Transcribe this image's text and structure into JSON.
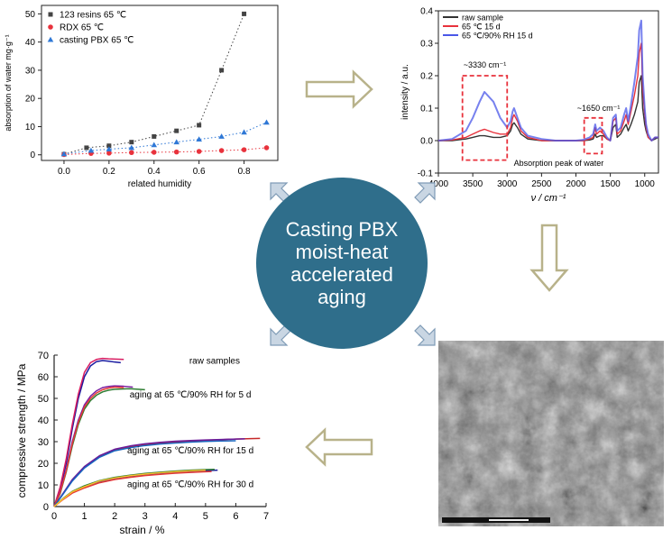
{
  "center": {
    "lines": [
      "Casting PBX",
      "moist-heat",
      "accelerated",
      "aging"
    ],
    "color": "#2f6e8b"
  },
  "sem_image": {
    "description": "",
    "scale_bar": ""
  },
  "chart_data": [
    {
      "type": "scatter",
      "xlabel": "related humidity",
      "ylabel": "absorption of water mg·g⁻¹",
      "xlim": [
        -0.1,
        0.95
      ],
      "ylim": [
        -2,
        53
      ],
      "xticks": [
        "0.0",
        "0.2",
        "0.4",
        "0.6",
        "0.8"
      ],
      "yticks": [
        "0",
        "10",
        "20",
        "30",
        "40",
        "50"
      ],
      "legend_position": "top-left",
      "series": [
        {
          "name": "123 resins 65 ℃",
          "marker": "square",
          "color": "#444444",
          "x": [
            0.0,
            0.1,
            0.2,
            0.3,
            0.4,
            0.5,
            0.6,
            0.7,
            0.8
          ],
          "y": [
            0.2,
            2.5,
            3.2,
            4.5,
            6.5,
            8.5,
            10.5,
            30.0,
            50.0
          ]
        },
        {
          "name": "RDX 65 ℃",
          "marker": "circle",
          "color": "#e8323c",
          "x": [
            0.0,
            0.12,
            0.2,
            0.3,
            0.4,
            0.5,
            0.6,
            0.7,
            0.8,
            0.9
          ],
          "y": [
            0.1,
            0.5,
            0.6,
            0.8,
            0.9,
            1.0,
            1.2,
            1.5,
            1.8,
            2.5
          ]
        },
        {
          "name": "casting PBX 65 ℃",
          "marker": "triangle",
          "color": "#2f78d6",
          "x": [
            0.0,
            0.12,
            0.2,
            0.3,
            0.4,
            0.5,
            0.6,
            0.7,
            0.8,
            0.9
          ],
          "y": [
            0.3,
            1.5,
            2.0,
            2.5,
            3.5,
            4.5,
            5.5,
            6.5,
            8.0,
            11.5
          ]
        }
      ]
    },
    {
      "type": "line",
      "xlabel": "ν / cm⁻¹",
      "ylabel": "intensity / a.u.",
      "xlim": [
        4000,
        800
      ],
      "ylim": [
        -0.1,
        0.4
      ],
      "xticks": [
        "4000",
        "3500",
        "3000",
        "2500",
        "2000",
        "1500",
        "1000"
      ],
      "yticks": [
        "-0.1",
        "0.0",
        "0.1",
        "0.2",
        "0.3",
        "0.4"
      ],
      "legend_position": "top-left",
      "annotations": [
        "~3330 cm⁻¹",
        "~1650 cm⁻¹",
        "Absorption peak of water"
      ],
      "series": [
        {
          "name": "raw sample",
          "color": "#333333",
          "x": [
            4000,
            3800,
            3600,
            3500,
            3400,
            3330,
            3200,
            3100,
            3000,
            2950,
            2920,
            2900,
            2850,
            2800,
            2700,
            2500,
            2300,
            2100,
            2000,
            1900,
            1800,
            1750,
            1720,
            1700,
            1650,
            1600,
            1550,
            1500,
            1460,
            1420,
            1400,
            1350,
            1300,
            1270,
            1240,
            1200,
            1150,
            1100,
            1080,
            1050,
            1030,
            1000,
            980,
            950,
            900,
            850,
            800
          ],
          "y": [
            0.0,
            0.0,
            0.005,
            0.01,
            0.015,
            0.015,
            0.01,
            0.01,
            0.015,
            0.03,
            0.05,
            0.055,
            0.04,
            0.02,
            0.005,
            0.0,
            0.0,
            0.0,
            0.0,
            0.0,
            0.002,
            0.005,
            0.02,
            0.01,
            0.015,
            0.015,
            0.005,
            0.0,
            0.04,
            0.05,
            0.01,
            0.02,
            0.04,
            0.05,
            0.03,
            0.05,
            0.08,
            0.12,
            0.18,
            0.2,
            0.1,
            0.05,
            0.03,
            0.01,
            0.0,
            0.005,
            0.01
          ]
        },
        {
          "name": "65 ℃ 15 d",
          "color": "#e8323c",
          "x": [
            4000,
            3800,
            3600,
            3500,
            3400,
            3330,
            3200,
            3100,
            3000,
            2950,
            2920,
            2900,
            2850,
            2800,
            2700,
            2500,
            2300,
            2100,
            2000,
            1900,
            1800,
            1750,
            1720,
            1700,
            1650,
            1600,
            1550,
            1500,
            1460,
            1420,
            1400,
            1350,
            1300,
            1270,
            1240,
            1200,
            1150,
            1100,
            1080,
            1050,
            1030,
            1000,
            980,
            950,
            900,
            850,
            800
          ],
          "y": [
            0.0,
            0.002,
            0.01,
            0.02,
            0.03,
            0.035,
            0.025,
            0.02,
            0.02,
            0.04,
            0.07,
            0.08,
            0.06,
            0.03,
            0.01,
            0.0,
            0.0,
            0.0,
            0.0,
            0.0,
            0.005,
            0.01,
            0.04,
            0.02,
            0.03,
            0.02,
            0.005,
            0.0,
            0.06,
            0.07,
            0.02,
            0.03,
            0.06,
            0.08,
            0.05,
            0.09,
            0.14,
            0.2,
            0.27,
            0.3,
            0.16,
            0.08,
            0.04,
            0.01,
            0.0,
            0.01,
            0.01
          ]
        },
        {
          "name": "65 ℃/90% RH 15 d",
          "color": "#4a57e8",
          "x": [
            4000,
            3800,
            3600,
            3500,
            3400,
            3330,
            3200,
            3100,
            3000,
            2950,
            2920,
            2900,
            2850,
            2800,
            2700,
            2500,
            2300,
            2100,
            2000,
            1900,
            1800,
            1750,
            1720,
            1700,
            1650,
            1600,
            1550,
            1500,
            1460,
            1420,
            1400,
            1350,
            1300,
            1270,
            1240,
            1200,
            1150,
            1100,
            1080,
            1050,
            1030,
            1000,
            980,
            950,
            900,
            850,
            800
          ],
          "y": [
            0.0,
            0.005,
            0.03,
            0.07,
            0.12,
            0.15,
            0.12,
            0.07,
            0.04,
            0.06,
            0.09,
            0.1,
            0.07,
            0.04,
            0.015,
            0.005,
            0.0,
            0.0,
            0.0,
            0.002,
            0.01,
            0.02,
            0.05,
            0.03,
            0.04,
            0.03,
            0.01,
            0.0,
            0.07,
            0.08,
            0.03,
            0.04,
            0.08,
            0.1,
            0.06,
            0.11,
            0.18,
            0.26,
            0.34,
            0.37,
            0.2,
            0.1,
            0.05,
            0.02,
            0.0,
            0.01,
            0.01
          ]
        }
      ]
    },
    {
      "type": "line",
      "xlabel": "strain / %",
      "ylabel": "compressive strength / MPa",
      "xlim": [
        0,
        7
      ],
      "ylim": [
        0,
        70
      ],
      "xticks": [
        "0",
        "1",
        "2",
        "3",
        "4",
        "5",
        "6",
        "7"
      ],
      "yticks": [
        "0",
        "10",
        "20",
        "30",
        "40",
        "50",
        "60",
        "70"
      ],
      "annotations": [
        "raw samples",
        "aging at 65 ℃/90% RH for 5 d",
        "aging at 65 ℃/90% RH for 15 d",
        "aging at 65 ℃/90% RH for 30 d"
      ],
      "series": [
        {
          "name": "",
          "group": "raw",
          "color": "#1a1aa0",
          "x": [
            0,
            0.2,
            0.4,
            0.6,
            0.8,
            1.0,
            1.2,
            1.4,
            1.6,
            1.8,
            2.0,
            2.2
          ],
          "y": [
            0,
            8,
            20,
            36,
            50,
            60,
            65,
            67,
            67.5,
            67.2,
            66.8,
            66.5
          ]
        },
        {
          "name": "",
          "group": "raw",
          "color": "#d81b60",
          "x": [
            0,
            0.2,
            0.4,
            0.6,
            0.8,
            1.0,
            1.2,
            1.4,
            1.6,
            1.8,
            2.0,
            2.3
          ],
          "y": [
            0,
            9,
            22,
            38,
            52,
            62,
            66.5,
            68,
            68.5,
            68.3,
            68.2,
            68.0
          ]
        },
        {
          "name": "",
          "group": "5d",
          "color": "#2e7d32",
          "x": [
            0,
            0.2,
            0.4,
            0.6,
            0.8,
            1.0,
            1.2,
            1.4,
            1.6,
            1.8,
            2.0,
            2.5,
            3.0
          ],
          "y": [
            0,
            6,
            16,
            28,
            38,
            45,
            49,
            51.5,
            53,
            53.8,
            54.2,
            54.5,
            54.0
          ]
        },
        {
          "name": "",
          "group": "5d",
          "color": "#7b1fa2",
          "x": [
            0,
            0.2,
            0.4,
            0.6,
            0.8,
            1.0,
            1.2,
            1.4,
            1.6,
            1.8,
            2.0,
            2.3,
            2.6
          ],
          "y": [
            0,
            7,
            17,
            30,
            40,
            47,
            51,
            53.5,
            55,
            55.5,
            55.8,
            55.6,
            55.2
          ]
        },
        {
          "name": "",
          "group": "5d",
          "color": "#e53935",
          "x": [
            0,
            0.2,
            0.4,
            0.6,
            0.8,
            1.0,
            1.2,
            1.4,
            1.6,
            1.8,
            2.0,
            2.3
          ],
          "y": [
            0,
            6.5,
            16.5,
            29,
            39,
            46,
            50,
            52.5,
            54,
            54.8,
            55.2,
            55.0
          ]
        },
        {
          "name": "",
          "group": "15d",
          "color": "#c62828",
          "x": [
            0,
            0.3,
            0.6,
            1.0,
            1.5,
            2.0,
            2.5,
            3.0,
            3.5,
            4.0,
            4.5,
            5.0,
            5.5,
            6.0,
            6.5,
            6.8
          ],
          "y": [
            0,
            6,
            12,
            18,
            23,
            26,
            27.5,
            28.5,
            29.2,
            29.8,
            30.2,
            30.6,
            30.9,
            31.2,
            31.4,
            31.5
          ]
        },
        {
          "name": "",
          "group": "15d",
          "color": "#6a1b9a",
          "x": [
            0,
            0.3,
            0.6,
            1.0,
            1.5,
            2.0,
            2.5,
            3.0,
            3.5,
            4.0,
            4.5,
            5.0,
            5.5,
            6.0,
            6.3
          ],
          "y": [
            0,
            6.2,
            12.5,
            18.5,
            23.5,
            26.5,
            28,
            29,
            29.7,
            30.2,
            30.5,
            30.8,
            31,
            31.2,
            31.3
          ]
        },
        {
          "name": "",
          "group": "15d",
          "color": "#1565c0",
          "x": [
            0,
            0.3,
            0.6,
            1.0,
            1.5,
            2.0,
            2.5,
            3.0,
            3.5,
            4.0,
            4.5,
            5.0,
            5.5,
            6.0
          ],
          "y": [
            0,
            5.8,
            11.8,
            17.8,
            22.8,
            25.8,
            27.2,
            28.2,
            28.9,
            29.4,
            29.8,
            30.1,
            30.3,
            30.4
          ]
        },
        {
          "name": "",
          "group": "30d",
          "color": "#1a1aa0",
          "x": [
            0,
            0.3,
            0.6,
            1.0,
            1.5,
            2.0,
            2.5,
            3.0,
            3.5,
            4.0,
            4.5,
            5.0,
            5.4
          ],
          "y": [
            0,
            3.5,
            6.5,
            9,
            11.5,
            13,
            14,
            14.8,
            15.4,
            15.9,
            16.3,
            16.6,
            16.8
          ]
        },
        {
          "name": "",
          "group": "30d",
          "color": "#2e7d32",
          "x": [
            0,
            0.3,
            0.6,
            1.0,
            1.5,
            2.0,
            2.5,
            3.0,
            3.5,
            4.0,
            4.5,
            5.0,
            5.3
          ],
          "y": [
            0,
            3.8,
            7,
            9.6,
            12,
            13.5,
            14.5,
            15.3,
            15.9,
            16.4,
            16.8,
            17.1,
            17.2
          ]
        },
        {
          "name": "",
          "group": "30d",
          "color": "#e53935",
          "x": [
            0,
            0.3,
            0.6,
            1.0,
            1.5,
            2.0,
            2.5,
            3.0,
            3.5,
            4.0,
            4.5,
            5.0,
            5.2
          ],
          "y": [
            0,
            3.3,
            6.2,
            8.6,
            11,
            12.5,
            13.5,
            14.3,
            14.9,
            15.4,
            15.8,
            16.1,
            16.2
          ]
        },
        {
          "name": "",
          "group": "30d",
          "color": "#fbc02d",
          "x": [
            0,
            0.3,
            0.6,
            1.0,
            1.5,
            2.0,
            2.5,
            3.0,
            3.5,
            4.0,
            4.5,
            5.0
          ],
          "y": [
            0,
            3.6,
            6.8,
            9.2,
            11.8,
            13.2,
            14.2,
            15,
            15.6,
            16.1,
            16.5,
            16.8
          ]
        }
      ]
    }
  ]
}
